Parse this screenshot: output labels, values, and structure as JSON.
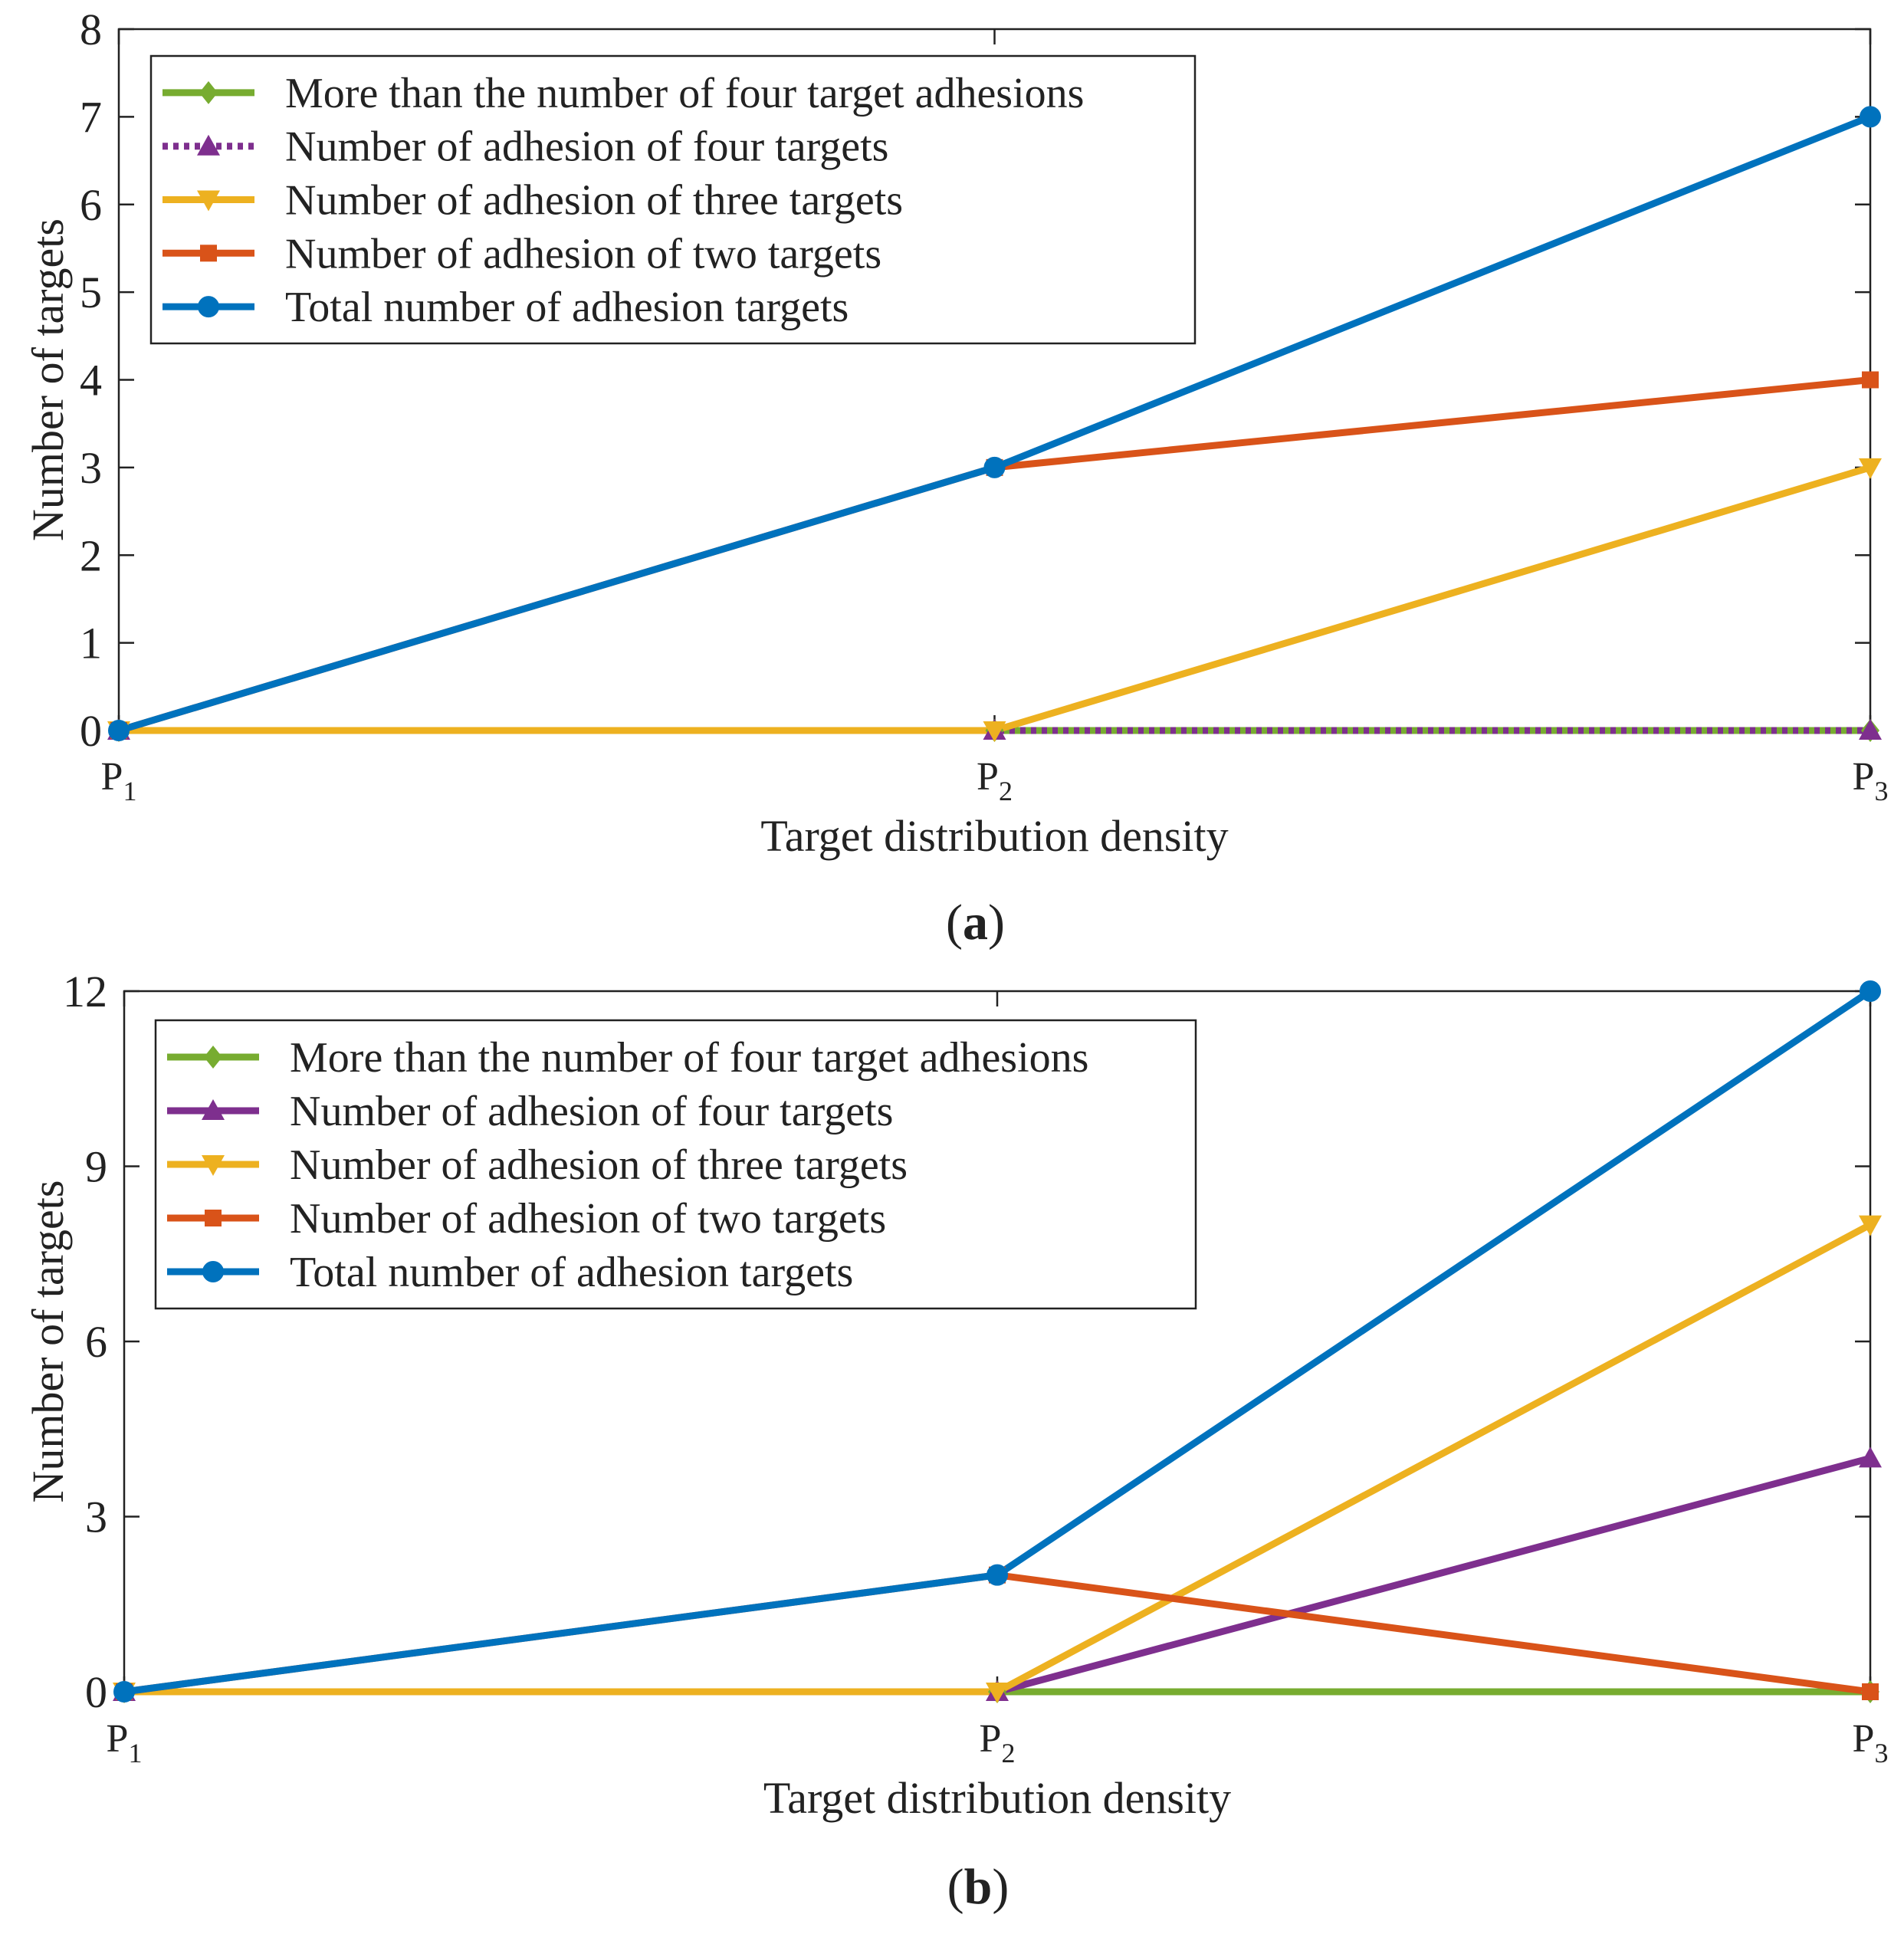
{
  "chart_data": [
    {
      "id": "a",
      "type": "line",
      "caption_letter": "a",
      "xlabel": "Target distribution density",
      "ylabel": "Number of targets",
      "categories": [
        {
          "main": "P",
          "sub": "1"
        },
        {
          "main": "P",
          "sub": "2"
        },
        {
          "main": "P",
          "sub": "3"
        }
      ],
      "ylim": [
        0,
        8
      ],
      "yticks": [
        0,
        1,
        2,
        3,
        4,
        5,
        6,
        7,
        8
      ],
      "grid": false,
      "legend_position": "top-left",
      "series": [
        {
          "name": "More than the number of four target adhesions",
          "values": [
            0,
            0,
            0
          ],
          "color": "#77ac30",
          "marker": "diamond",
          "dash": "solid"
        },
        {
          "name": "Number of adhesion of four targets",
          "values": [
            0,
            0,
            0
          ],
          "color": "#7e2f8e",
          "marker": "triangle-up",
          "dash": "dotted"
        },
        {
          "name": "Number of adhesion of three targets",
          "values": [
            0,
            0,
            3
          ],
          "color": "#edb120",
          "marker": "triangle-down",
          "dash": "solid"
        },
        {
          "name": "Number of adhesion of two targets",
          "values": [
            0,
            3,
            4
          ],
          "color": "#d95319",
          "marker": "square",
          "dash": "solid"
        },
        {
          "name": "Total number of adhesion targets",
          "values": [
            0,
            3,
            7
          ],
          "color": "#0072bd",
          "marker": "circle",
          "dash": "solid"
        }
      ]
    },
    {
      "id": "b",
      "type": "line",
      "caption_letter": "b",
      "xlabel": "Target distribution density",
      "ylabel": "Number of targets",
      "categories": [
        {
          "main": "P",
          "sub": "1"
        },
        {
          "main": "P",
          "sub": "2"
        },
        {
          "main": "P",
          "sub": "3"
        }
      ],
      "ylim": [
        0,
        12
      ],
      "yticks": [
        0,
        3,
        6,
        9,
        12
      ],
      "grid": false,
      "legend_position": "top-left",
      "series": [
        {
          "name": "More than the number of four target adhesions",
          "values": [
            0,
            0,
            0
          ],
          "color": "#77ac30",
          "marker": "diamond",
          "dash": "solid"
        },
        {
          "name": "Number of adhesion of four targets",
          "values": [
            0,
            0,
            4
          ],
          "color": "#7e2f8e",
          "marker": "triangle-up",
          "dash": "solid"
        },
        {
          "name": "Number of adhesion of three targets",
          "values": [
            0,
            0,
            8
          ],
          "color": "#edb120",
          "marker": "triangle-down",
          "dash": "solid"
        },
        {
          "name": "Number of adhesion of two targets",
          "values": [
            0,
            2,
            0
          ],
          "color": "#d95319",
          "marker": "square",
          "dash": "solid"
        },
        {
          "name": "Total number of adhesion targets",
          "values": [
            0,
            2,
            12
          ],
          "color": "#0072bd",
          "marker": "circle",
          "dash": "solid"
        }
      ]
    }
  ]
}
